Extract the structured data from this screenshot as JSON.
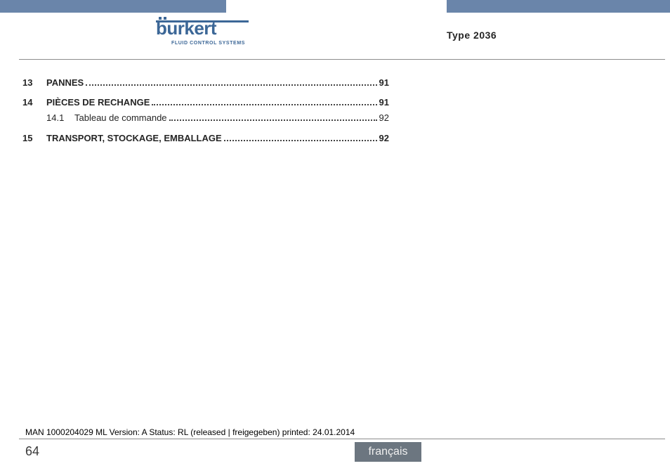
{
  "header": {
    "logo_text": "burkert",
    "logo_sub": "FLUID CONTROL SYSTEMS",
    "type_label": "Type 2036",
    "accent_color": "#6a85aa",
    "logo_color": "#3c6797"
  },
  "toc": {
    "items": [
      {
        "num": "13",
        "title": "PANNES",
        "page": "91",
        "level": "major"
      },
      {
        "num": "14",
        "title": "PIÈCES DE RECHANGE",
        "page": "91",
        "level": "major"
      },
      {
        "num": "14.1",
        "title": "Tableau de commande",
        "page": "92",
        "level": "minor"
      },
      {
        "num": "15",
        "title": "TRANSPORT, STOCKAGE, EMBALLAGE",
        "page": "92",
        "level": "major"
      }
    ]
  },
  "footer": {
    "release_line": "MAN 1000204029 ML Version: A Status: RL (released | freigegeben) printed: 24.01.2014",
    "page_number": "64",
    "language": "français",
    "lang_tab_color": "#6c7680"
  }
}
